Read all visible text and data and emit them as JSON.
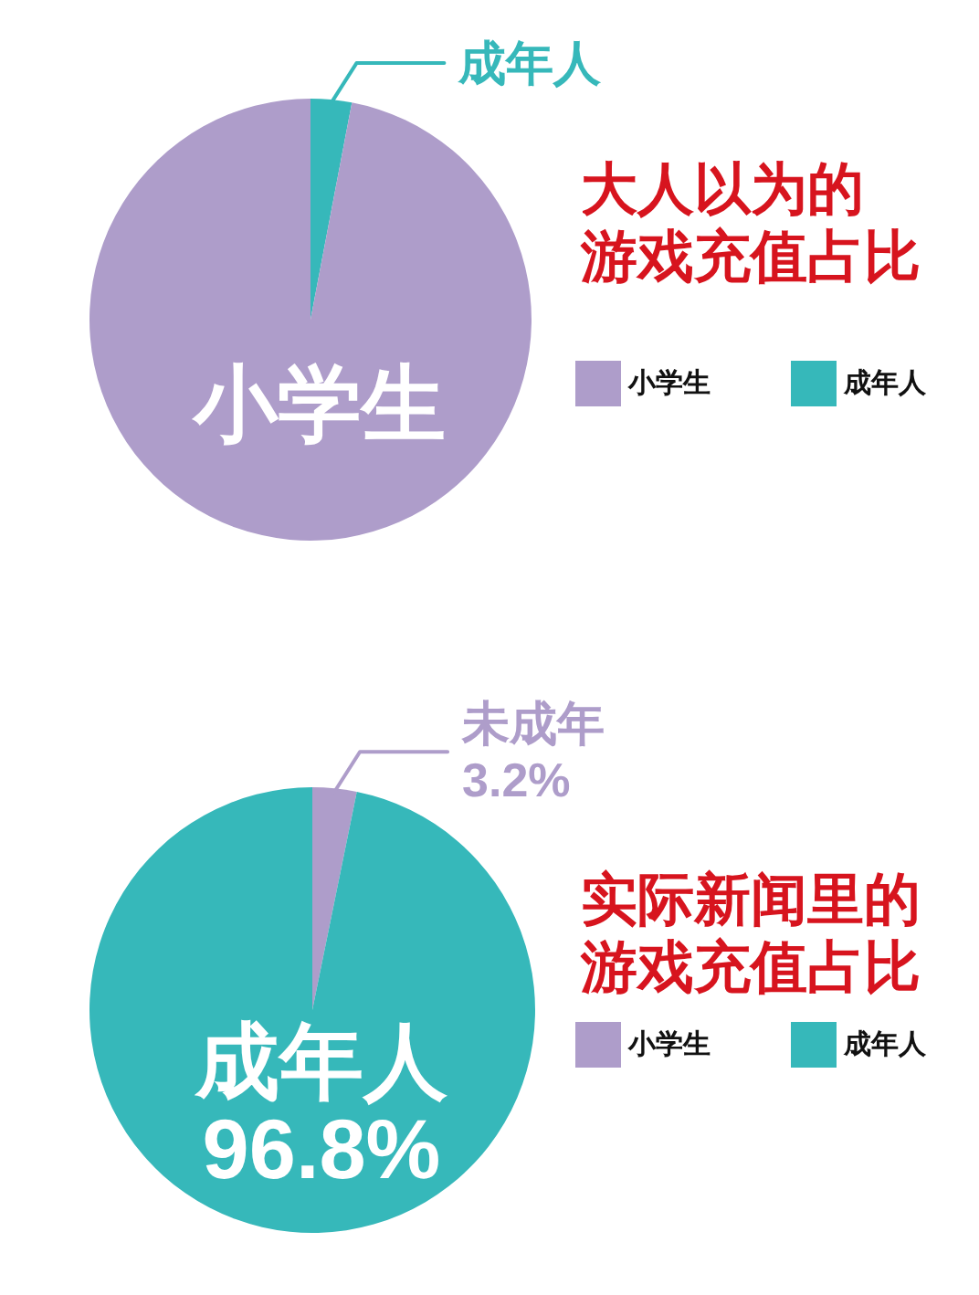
{
  "chart_data": [
    {
      "type": "pie",
      "title": "大人以为的游戏充值占比",
      "categories": [
        "小学生",
        "成年人"
      ],
      "values": [
        97,
        3
      ],
      "colors": [
        "#ae9dca",
        "#36b8ba"
      ],
      "legend": "right"
    },
    {
      "type": "pie",
      "title": "实际新闻里的游戏充值占比",
      "categories": [
        "小学生",
        "成年人"
      ],
      "values": [
        3.2,
        96.8
      ],
      "colors": [
        "#ae9dca",
        "#36b8ba"
      ],
      "value_labels": [
        "3.2%",
        "96.8%"
      ],
      "annotations": [
        {
          "text": "未成年",
          "x": "小学生"
        }
      ],
      "legend": "right"
    }
  ]
}
